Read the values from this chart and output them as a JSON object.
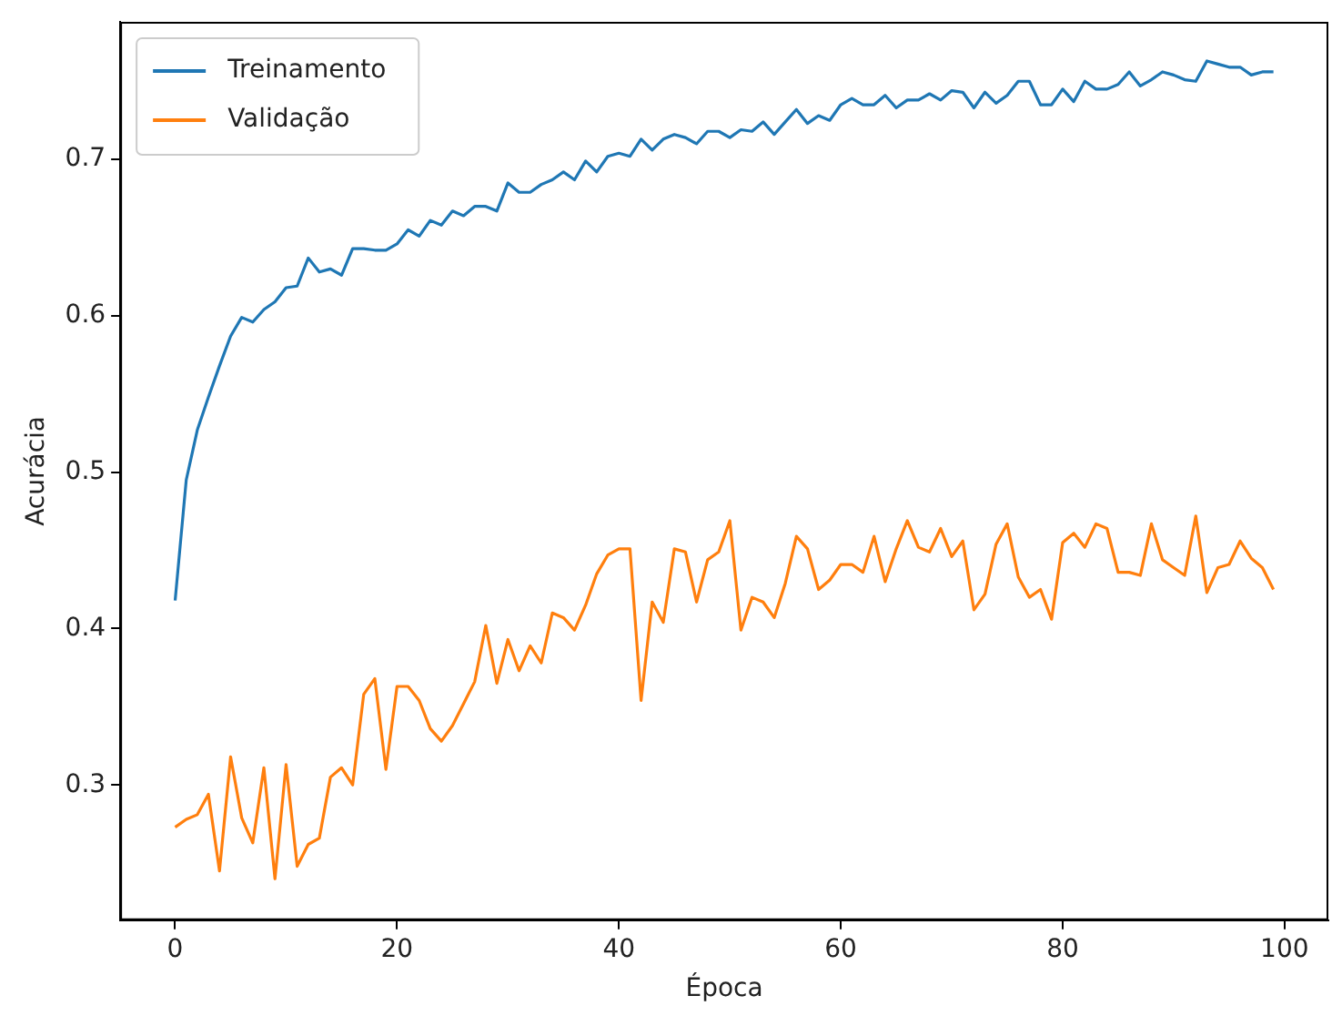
{
  "chart_data": {
    "type": "line",
    "xlabel": "Época",
    "ylabel": "Acurácia",
    "x": [
      0,
      1,
      2,
      3,
      4,
      5,
      6,
      7,
      8,
      9,
      10,
      11,
      12,
      13,
      14,
      15,
      16,
      17,
      18,
      19,
      20,
      21,
      22,
      23,
      24,
      25,
      26,
      27,
      28,
      29,
      30,
      31,
      32,
      33,
      34,
      35,
      36,
      37,
      38,
      39,
      40,
      41,
      42,
      43,
      44,
      45,
      46,
      47,
      48,
      49,
      50,
      51,
      52,
      53,
      54,
      55,
      56,
      57,
      58,
      59,
      60,
      61,
      62,
      63,
      64,
      65,
      66,
      67,
      68,
      69,
      70,
      71,
      72,
      73,
      74,
      75,
      76,
      77,
      78,
      79,
      80,
      81,
      82,
      83,
      84,
      85,
      86,
      87,
      88,
      89,
      90,
      91,
      92,
      93,
      94,
      95,
      96,
      97,
      98,
      99
    ],
    "series": [
      {
        "name": "Treinamento",
        "color": "#1f77b4",
        "values": [
          0.418,
          0.495,
          0.527,
          0.548,
          0.568,
          0.587,
          0.599,
          0.596,
          0.604,
          0.609,
          0.618,
          0.619,
          0.637,
          0.628,
          0.63,
          0.626,
          0.643,
          0.643,
          0.642,
          0.642,
          0.646,
          0.655,
          0.651,
          0.661,
          0.658,
          0.667,
          0.664,
          0.67,
          0.67,
          0.667,
          0.685,
          0.679,
          0.679,
          0.684,
          0.687,
          0.692,
          0.687,
          0.699,
          0.692,
          0.702,
          0.704,
          0.702,
          0.713,
          0.706,
          0.713,
          0.716,
          0.714,
          0.71,
          0.718,
          0.718,
          0.714,
          0.719,
          0.718,
          0.724,
          0.716,
          0.724,
          0.732,
          0.723,
          0.728,
          0.725,
          0.735,
          0.739,
          0.735,
          0.735,
          0.741,
          0.733,
          0.738,
          0.738,
          0.742,
          0.738,
          0.744,
          0.743,
          0.733,
          0.743,
          0.736,
          0.741,
          0.75,
          0.75,
          0.735,
          0.735,
          0.745,
          0.737,
          0.75,
          0.745,
          0.745,
          0.748,
          0.756,
          0.747,
          0.751,
          0.756,
          0.754,
          0.751,
          0.75,
          0.763,
          0.761,
          0.759,
          0.759,
          0.754,
          0.756,
          0.756
        ]
      },
      {
        "name": "Validação",
        "color": "#ff7f0e",
        "values": [
          0.273,
          0.278,
          0.281,
          0.294,
          0.245,
          0.318,
          0.279,
          0.263,
          0.311,
          0.24,
          0.313,
          0.248,
          0.262,
          0.266,
          0.305,
          0.311,
          0.3,
          0.358,
          0.368,
          0.31,
          0.363,
          0.363,
          0.354,
          0.336,
          0.328,
          0.338,
          0.352,
          0.366,
          0.402,
          0.365,
          0.393,
          0.373,
          0.389,
          0.378,
          0.41,
          0.407,
          0.399,
          0.415,
          0.435,
          0.447,
          0.451,
          0.451,
          0.354,
          0.417,
          0.404,
          0.451,
          0.449,
          0.417,
          0.444,
          0.449,
          0.469,
          0.399,
          0.42,
          0.417,
          0.407,
          0.429,
          0.459,
          0.451,
          0.425,
          0.431,
          0.441,
          0.441,
          0.436,
          0.459,
          0.43,
          0.451,
          0.469,
          0.452,
          0.449,
          0.464,
          0.446,
          0.456,
          0.412,
          0.422,
          0.454,
          0.467,
          0.433,
          0.42,
          0.425,
          0.406,
          0.455,
          0.461,
          0.452,
          0.467,
          0.464,
          0.436,
          0.436,
          0.434,
          0.467,
          0.444,
          0.439,
          0.434,
          0.472,
          0.423,
          0.439,
          0.441,
          0.456,
          0.445,
          0.439,
          0.425
        ]
      }
    ],
    "xlim": [
      -4.95,
      103.95
    ],
    "xticks": [
      0,
      20,
      40,
      60,
      80,
      100
    ],
    "ylim": [
      0.2135,
      0.788
    ],
    "yticks": [
      0.3,
      0.4,
      0.5,
      0.6,
      0.7
    ],
    "legend": "top left",
    "grid": false
  }
}
